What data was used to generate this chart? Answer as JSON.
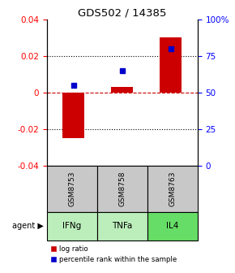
{
  "title": "GDS502 / 14385",
  "samples": [
    "GSM8753",
    "GSM8758",
    "GSM8763"
  ],
  "agents": [
    "IFNg",
    "TNFa",
    "IL4"
  ],
  "log_ratios": [
    -0.025,
    0.003,
    0.03
  ],
  "percentiles": [
    55,
    65,
    80
  ],
  "ylim_left": [
    -0.04,
    0.04
  ],
  "ylim_right": [
    0,
    100
  ],
  "yticks_left": [
    -0.04,
    -0.02,
    0,
    0.02,
    0.04
  ],
  "yticks_right": [
    0,
    25,
    50,
    75,
    100
  ],
  "ytick_labels_right": [
    "0",
    "25",
    "50",
    "75",
    "100%"
  ],
  "bar_color": "#cc0000",
  "point_color": "#0000cc",
  "bar_width": 0.45,
  "zero_line_color": "#cc0000",
  "sample_bg_color": "#c8c8c8",
  "agent_color_light": "#bbeebb",
  "agent_color_dark": "#66dd66",
  "legend_bar_label": "log ratio",
  "legend_point_label": "percentile rank within the sample"
}
